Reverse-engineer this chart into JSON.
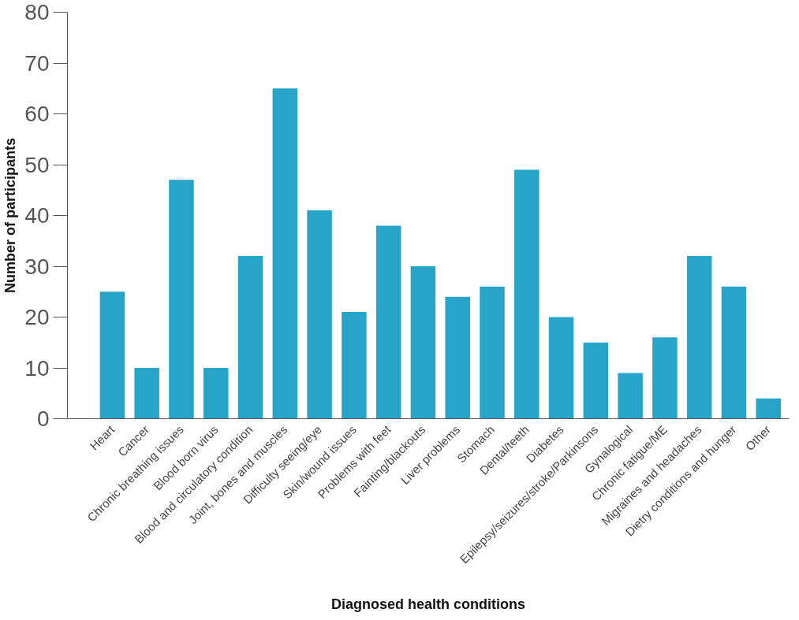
{
  "chart_data": {
    "type": "bar",
    "xlabel": "Diagnosed health conditions",
    "ylabel": "Number of participants",
    "categories": [
      "Heart",
      "Cancer",
      "Chronic breathing issues",
      "Blood born virus",
      "Blood and circulatory condition",
      "Joint, bones and muscles",
      "Difficulty seeing/eye",
      "Skin/wound issues",
      "Problems with feet",
      "Fainting/blackouts",
      "Liver problems",
      "Stomach",
      "Dental/teeth",
      "Diabetes",
      "Epilepsy/seizures/stroke/Parkinsons",
      "Gynalogical",
      "Chronic fatigue/ME",
      "Migraines and headaches",
      "Dietry conditions and hunger",
      "Other"
    ],
    "values": [
      25,
      10,
      47,
      10,
      32,
      65,
      41,
      21,
      38,
      30,
      24,
      26,
      49,
      20,
      15,
      9,
      16,
      32,
      26,
      4
    ],
    "color": "#29a4c9",
    "ylim": [
      0,
      80
    ],
    "yticks": [
      0,
      10,
      20,
      30,
      40,
      50,
      60,
      70,
      80
    ],
    "grid": false
  }
}
